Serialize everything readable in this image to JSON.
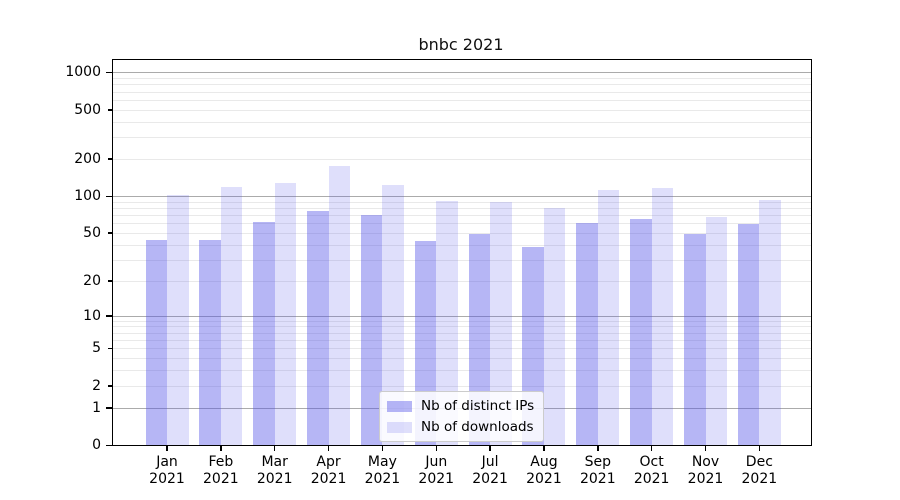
{
  "chart_data": {
    "type": "bar",
    "title": "bnbc 2021",
    "categories": [
      "Jan",
      "Feb",
      "Mar",
      "Apr",
      "May",
      "Jun",
      "Jul",
      "Aug",
      "Sep",
      "Oct",
      "Nov",
      "Dec"
    ],
    "x_tick_year": "2021",
    "series": [
      {
        "name": "Nb of distinct IPs",
        "color": "#5050e8",
        "alpha": 0.42,
        "values": [
          44,
          44,
          62,
          75,
          70,
          43,
          49,
          38,
          60,
          65,
          49,
          59
        ]
      },
      {
        "name": "Nb of downloads",
        "color": "#5050e8",
        "alpha": 0.18,
        "values": [
          102,
          119,
          128,
          175,
          123,
          92,
          90,
          80,
          113,
          116,
          67,
          93
        ]
      }
    ],
    "y_scale": "log10(1+y)",
    "y_ticks": [
      0,
      1,
      2,
      5,
      10,
      20,
      50,
      100,
      200,
      500,
      1000
    ],
    "y_major_ticks": [
      0,
      1,
      10,
      100,
      1000
    ],
    "ylim": [
      0,
      1258
    ],
    "grid": true,
    "legend": {
      "position": "lower center",
      "labels": [
        "Nb of distinct IPs",
        "Nb of downloads"
      ]
    },
    "colors": {
      "grid_major": "#ababab",
      "grid_minor": "#e9e9e9",
      "spine": "#000000",
      "text": "#000000",
      "background": "#ffffff"
    }
  }
}
